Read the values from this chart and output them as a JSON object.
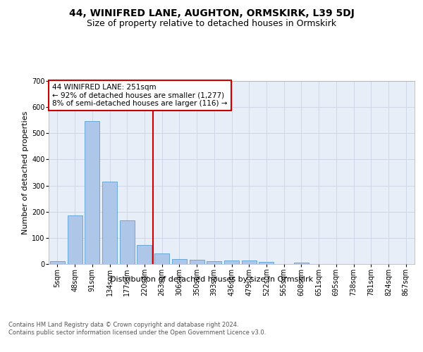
{
  "title": "44, WINIFRED LANE, AUGHTON, ORMSKIRK, L39 5DJ",
  "subtitle": "Size of property relative to detached houses in Ormskirk",
  "xlabel": "Distribution of detached houses by size in Ormskirk",
  "ylabel": "Number of detached properties",
  "footnote": "Contains HM Land Registry data © Crown copyright and database right 2024.\nContains public sector information licensed under the Open Government Licence v3.0.",
  "bar_labels": [
    "5sqm",
    "48sqm",
    "91sqm",
    "134sqm",
    "177sqm",
    "220sqm",
    "263sqm",
    "306sqm",
    "350sqm",
    "393sqm",
    "436sqm",
    "479sqm",
    "522sqm",
    "565sqm",
    "608sqm",
    "651sqm",
    "695sqm",
    "738sqm",
    "781sqm",
    "824sqm",
    "867sqm"
  ],
  "bar_values": [
    10,
    185,
    547,
    315,
    168,
    74,
    40,
    18,
    17,
    12,
    13,
    13,
    8,
    0,
    6,
    0,
    0,
    0,
    0,
    0,
    0
  ],
  "bar_color": "#aec6e8",
  "bar_edge_color": "#5a9fd4",
  "grid_color": "#d0d8e8",
  "background_color": "#e8eef8",
  "vline_x": 5.5,
  "vline_color": "#cc0000",
  "annotation_text": "44 WINIFRED LANE: 251sqm\n← 92% of detached houses are smaller (1,277)\n8% of semi-detached houses are larger (116) →",
  "annotation_box_color": "#cc0000",
  "ylim": [
    0,
    700
  ],
  "yticks": [
    0,
    100,
    200,
    300,
    400,
    500,
    600,
    700
  ],
  "title_fontsize": 10,
  "subtitle_fontsize": 9,
  "ylabel_fontsize": 8,
  "xlabel_fontsize": 8,
  "footnote_fontsize": 6,
  "tick_fontsize": 7
}
